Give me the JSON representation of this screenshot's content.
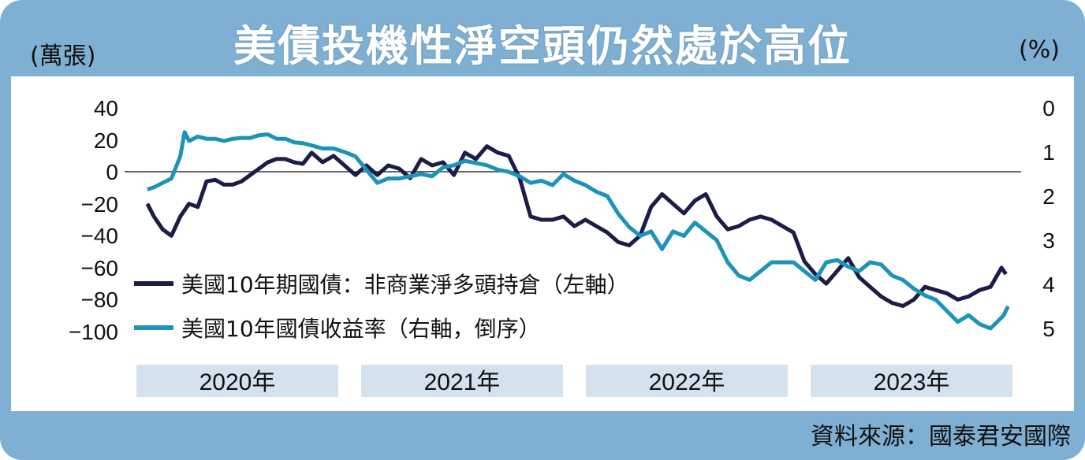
{
  "header": {
    "title": "美債投機性淨空頭仍然處於高位",
    "unit_left": "(萬張)",
    "unit_right": "(%)"
  },
  "footer": {
    "source": "資料來源：國泰君安國際"
  },
  "colors": {
    "frame": "#7fb0d3",
    "dark_series": "#1b1d48",
    "light_series": "#1c93b8",
    "year_band": "#d4e2ef"
  },
  "chart_data": {
    "type": "line",
    "title": "美債投機性淨空頭仍然處於高位",
    "y_left": {
      "label": "(萬張)",
      "lim": [
        -100,
        40
      ],
      "ticks": [
        "40",
        "20",
        "0",
        "−20",
        "−40",
        "−60",
        "−80",
        "−100"
      ]
    },
    "y_right": {
      "label": "(%)",
      "lim": [
        0,
        5
      ],
      "inverted": true,
      "ticks": [
        "0",
        "1",
        "2",
        "3",
        "4",
        "5"
      ]
    },
    "x_years": [
      "2020年",
      "2021年",
      "2022年",
      "2023年"
    ],
    "x_range": [
      2020.0,
      2024.0
    ],
    "grid": false,
    "series": [
      {
        "name": "美國10年期國債：非商業淨多頭持倉（左軸）",
        "axis": "left",
        "x": [
          2020.05,
          2020.08,
          2020.12,
          2020.16,
          2020.2,
          2020.24,
          2020.28,
          2020.32,
          2020.36,
          2020.4,
          2020.44,
          2020.48,
          2020.52,
          2020.56,
          2020.6,
          2020.64,
          2020.68,
          2020.72,
          2020.76,
          2020.8,
          2020.85,
          2020.9,
          2020.95,
          2021.0,
          2021.05,
          2021.1,
          2021.15,
          2021.2,
          2021.25,
          2021.3,
          2021.35,
          2021.4,
          2021.45,
          2021.5,
          2021.55,
          2021.6,
          2021.65,
          2021.7,
          2021.75,
          2021.8,
          2021.85,
          2021.9,
          2021.95,
          2022.0,
          2022.05,
          2022.1,
          2022.15,
          2022.2,
          2022.25,
          2022.3,
          2022.35,
          2022.4,
          2022.45,
          2022.5,
          2022.55,
          2022.6,
          2022.65,
          2022.7,
          2022.75,
          2022.8,
          2022.85,
          2022.9,
          2022.95,
          2023.0,
          2023.05,
          2023.1,
          2023.15,
          2023.2,
          2023.25,
          2023.3,
          2023.35,
          2023.4,
          2023.45,
          2023.5,
          2023.55,
          2023.6,
          2023.65,
          2023.7,
          2023.75,
          2023.8,
          2023.85,
          2023.9,
          2023.95,
          2023.97
        ],
        "values": [
          -20,
          -28,
          -36,
          -40,
          -28,
          -20,
          -22,
          -6,
          -5,
          -8,
          -8,
          -6,
          -2,
          2,
          6,
          8,
          8,
          6,
          5,
          12,
          6,
          10,
          4,
          -2,
          4,
          -2,
          4,
          2,
          -4,
          8,
          4,
          6,
          -2,
          12,
          8,
          16,
          12,
          10,
          -4,
          -28,
          -30,
          -30,
          -28,
          -34,
          -30,
          -34,
          -38,
          -44,
          -46,
          -40,
          -22,
          -14,
          -20,
          -26,
          -18,
          -14,
          -28,
          -36,
          -34,
          -30,
          -28,
          -30,
          -34,
          -38,
          -56,
          -64,
          -70,
          -62,
          -54,
          -66,
          -72,
          -78,
          -82,
          -84,
          -80,
          -72,
          -74,
          -76,
          -80,
          -78,
          -74,
          -72,
          -60,
          -64
        ]
      },
      {
        "name": "美國10年國債收益率（右軸，倒序）",
        "axis": "right",
        "x": [
          2020.05,
          2020.08,
          2020.12,
          2020.16,
          2020.2,
          2020.22,
          2020.24,
          2020.28,
          2020.32,
          2020.36,
          2020.4,
          2020.44,
          2020.48,
          2020.52,
          2020.56,
          2020.6,
          2020.64,
          2020.68,
          2020.72,
          2020.76,
          2020.8,
          2020.85,
          2020.9,
          2020.95,
          2021.0,
          2021.05,
          2021.1,
          2021.15,
          2021.2,
          2021.25,
          2021.3,
          2021.35,
          2021.4,
          2021.45,
          2021.5,
          2021.55,
          2021.6,
          2021.65,
          2021.7,
          2021.75,
          2021.8,
          2021.85,
          2021.9,
          2021.95,
          2022.0,
          2022.05,
          2022.1,
          2022.15,
          2022.2,
          2022.25,
          2022.3,
          2022.35,
          2022.4,
          2022.45,
          2022.5,
          2022.55,
          2022.6,
          2022.65,
          2022.7,
          2022.75,
          2022.8,
          2022.85,
          2022.9,
          2022.95,
          2023.0,
          2023.05,
          2023.1,
          2023.15,
          2023.2,
          2023.25,
          2023.3,
          2023.35,
          2023.4,
          2023.45,
          2023.5,
          2023.55,
          2023.6,
          2023.65,
          2023.7,
          2023.75,
          2023.8,
          2023.85,
          2023.9,
          2023.93,
          2023.96,
          2023.98
        ],
        "values": [
          1.85,
          1.8,
          1.7,
          1.6,
          1.1,
          0.55,
          0.75,
          0.65,
          0.7,
          0.7,
          0.75,
          0.7,
          0.68,
          0.68,
          0.62,
          0.6,
          0.7,
          0.7,
          0.78,
          0.8,
          0.85,
          0.92,
          0.92,
          1.0,
          1.1,
          1.4,
          1.7,
          1.6,
          1.6,
          1.55,
          1.5,
          1.55,
          1.35,
          1.3,
          1.2,
          1.25,
          1.3,
          1.4,
          1.45,
          1.55,
          1.7,
          1.65,
          1.75,
          1.5,
          1.65,
          1.75,
          1.9,
          2.0,
          2.4,
          2.7,
          2.9,
          2.8,
          3.2,
          2.8,
          2.9,
          2.6,
          2.8,
          3.0,
          3.5,
          3.8,
          3.9,
          3.7,
          3.5,
          3.5,
          3.5,
          3.7,
          3.9,
          3.5,
          3.45,
          3.6,
          3.7,
          3.5,
          3.55,
          3.8,
          3.9,
          4.1,
          4.25,
          4.35,
          4.6,
          4.85,
          4.7,
          4.9,
          5.0,
          4.85,
          4.7,
          4.5
        ]
      }
    ]
  }
}
